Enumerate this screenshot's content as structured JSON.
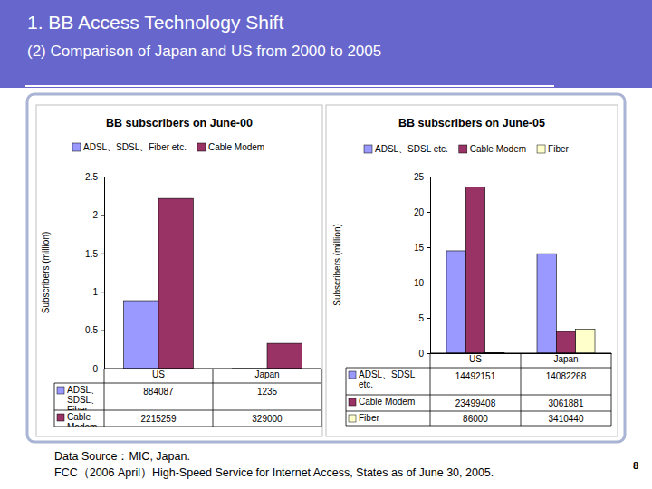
{
  "slide": {
    "title": "1. BB Access Technology Shift",
    "subtitle": "(2) Comparison of Japan and US from 2000 to 2005",
    "source": [
      "Data Source：MIC, Japan.",
      "FCC（2006 April）High-Speed Service for Internet Access, States as of June 30, 2005."
    ],
    "page": 8
  },
  "chart_data": [
    {
      "type": "bar",
      "title": "BB subscribers on June-00",
      "ylabel": "Subscribers (million)",
      "categories": [
        "US",
        "Japan"
      ],
      "series": [
        {
          "name": "ADSL、SDSL、Fiber etc.",
          "color": "#9999ff",
          "values": [
            0.884087,
            0.001235
          ],
          "value_labels": [
            "884087",
            "1235"
          ]
        },
        {
          "name": "Cable Modem",
          "color": "#993366",
          "values": [
            2.215259,
            0.329
          ],
          "value_labels": [
            "2215259",
            "329000"
          ]
        }
      ],
      "ylim": [
        0,
        2.5
      ],
      "yticks": [
        0,
        0.5,
        1,
        1.5,
        2,
        2.5
      ],
      "grid": false,
      "legend": "top",
      "data_labels": true
    },
    {
      "type": "bar",
      "title": "BB subscribers on June-05",
      "ylabel": "Subscribers (million)",
      "categories": [
        "US",
        "Japan"
      ],
      "series": [
        {
          "name": "ADSL、SDSL etc.",
          "color": "#9999ff",
          "values": [
            14.492151,
            14.082268
          ],
          "value_labels": [
            "14492151",
            "14082268"
          ]
        },
        {
          "name": "Cable Modem",
          "color": "#993366",
          "values": [
            23.499408,
            3.061881
          ],
          "value_labels": [
            "23499408",
            "3061881"
          ]
        },
        {
          "name": "Fiber",
          "color": "#ffffcc",
          "values": [
            0.086,
            3.41044
          ],
          "value_labels": [
            "86000",
            "3410440"
          ]
        }
      ],
      "ylim": [
        0,
        25
      ],
      "yticks": [
        0,
        5,
        10,
        15,
        20,
        25
      ],
      "grid": false,
      "legend": "top",
      "data_labels": true
    }
  ]
}
